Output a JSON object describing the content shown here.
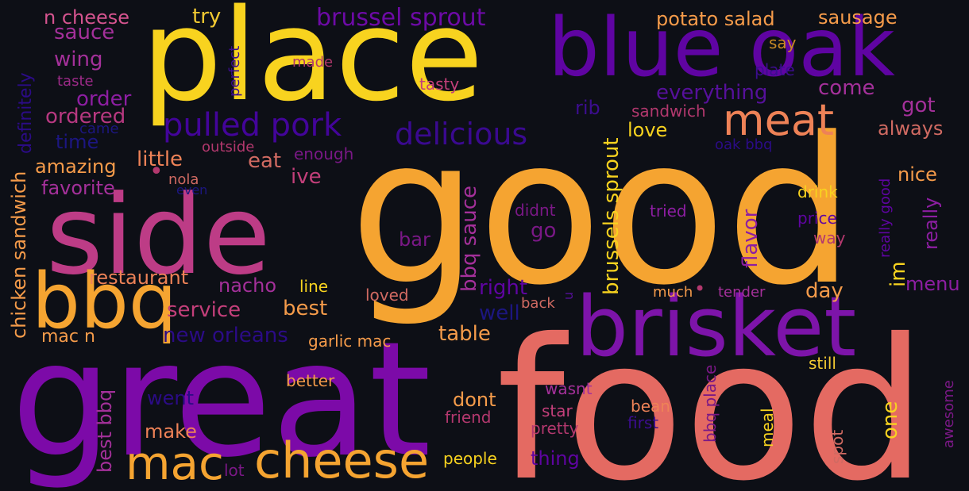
{
  "words": [
    {
      "text": "good",
      "color": "#f5a431"
    },
    {
      "text": "food",
      "color": "#e46a62"
    },
    {
      "text": "great",
      "color": "#7c0aa8"
    },
    {
      "text": "place",
      "color": "#f8d31f"
    },
    {
      "text": "side",
      "color": "#bd3c86"
    },
    {
      "text": "blue oak",
      "color": "#5f04a2"
    },
    {
      "text": "brisket",
      "color": "#7d14a9"
    },
    {
      "text": "bbq",
      "color": "#f5a431"
    },
    {
      "text": "cheese",
      "color": "#f5a431"
    },
    {
      "text": "mac",
      "color": "#f5a431"
    },
    {
      "text": "meat",
      "color": "#ee8257"
    },
    {
      "text": "pulled pork",
      "color": "#43049a"
    },
    {
      "text": "delicious",
      "color": "#3a0990"
    },
    {
      "text": "brussel sprout",
      "color": "#6d0aa6"
    },
    {
      "text": "potato salad",
      "color": "#f59b4a"
    },
    {
      "text": "sausage",
      "color": "#f59b4a"
    },
    {
      "text": "n cheese",
      "color": "#d5548f"
    },
    {
      "text": "try",
      "color": "#f1c932"
    },
    {
      "text": "sauce",
      "color": "#a4309a"
    },
    {
      "text": "wing",
      "color": "#a4309a"
    },
    {
      "text": "order",
      "color": "#8d1ea2"
    },
    {
      "text": "ordered",
      "color": "#b73880"
    },
    {
      "text": "time",
      "color": "#1c1680"
    },
    {
      "text": "came",
      "color": "#1c1680"
    },
    {
      "text": "taste",
      "color": "#9c2a88"
    },
    {
      "text": "made",
      "color": "#b1386c"
    },
    {
      "text": "tasty",
      "color": "#c33f7a"
    },
    {
      "text": "say",
      "color": "#c98a24"
    },
    {
      "text": "plate",
      "color": "#3c0d8f"
    },
    {
      "text": "everything",
      "color": "#56109b"
    },
    {
      "text": "come",
      "color": "#a4309a"
    },
    {
      "text": "sandwich",
      "color": "#b3386e"
    },
    {
      "text": "got",
      "color": "#a4309a"
    },
    {
      "text": "always",
      "color": "#d06a62"
    },
    {
      "text": "rib",
      "color": "#3c0d8f"
    },
    {
      "text": "love",
      "color": "#f8d31f"
    },
    {
      "text": "oak bbq",
      "color": "#2b0b86"
    },
    {
      "text": "nice",
      "color": "#f59b4a"
    },
    {
      "text": "really",
      "color": "#8d1ea2"
    },
    {
      "text": "definitely",
      "color": "#2b0b86"
    },
    {
      "text": "perfect",
      "color": "#3c0d8f"
    },
    {
      "text": "outside",
      "color": "#b3386e"
    },
    {
      "text": "enough",
      "color": "#7a1886"
    },
    {
      "text": "amazing",
      "color": "#f59b4a"
    },
    {
      "text": "little",
      "color": "#ee8257"
    },
    {
      "text": "eat",
      "color": "#d06a62"
    },
    {
      "text": "favorite",
      "color": "#a4309a"
    },
    {
      "text": "nola",
      "color": "#d06a62"
    },
    {
      "text": "even",
      "color": "#1c1680"
    },
    {
      "text": "ive",
      "color": "#c33f7a"
    },
    {
      "text": "chicken sandwich",
      "color": "#f59b4a"
    },
    {
      "text": "restaurant",
      "color": "#ee8257"
    },
    {
      "text": "nacho",
      "color": "#a4309a"
    },
    {
      "text": "line",
      "color": "#f8d31f"
    },
    {
      "text": "loved",
      "color": "#d06a62"
    },
    {
      "text": "service",
      "color": "#c33f7a"
    },
    {
      "text": "best",
      "color": "#f59b4a"
    },
    {
      "text": "mac n",
      "color": "#f59b4a"
    },
    {
      "text": "new orleans",
      "color": "#2b0b86"
    },
    {
      "text": "garlic mac",
      "color": "#f59b4a"
    },
    {
      "text": "bbq sauce",
      "color": "#a4309a"
    },
    {
      "text": "bar",
      "color": "#7a1886"
    },
    {
      "text": "right",
      "color": "#5f04a2"
    },
    {
      "text": "well",
      "color": "#1c1680"
    },
    {
      "text": "table",
      "color": "#f59b4a"
    },
    {
      "text": "didnt",
      "color": "#7a1886"
    },
    {
      "text": "go",
      "color": "#7a1886"
    },
    {
      "text": "brussels sprout",
      "color": "#f8d31f"
    },
    {
      "text": "tried",
      "color": "#8d1ea2"
    },
    {
      "text": "flavor",
      "color": "#8d1ea2"
    },
    {
      "text": "drink",
      "color": "#f8d31f"
    },
    {
      "text": "price",
      "color": "#5f04a2"
    },
    {
      "text": "way",
      "color": "#b3386e"
    },
    {
      "text": "really good",
      "color": "#5f04a2"
    },
    {
      "text": "im",
      "color": "#f8d31f"
    },
    {
      "text": "menu",
      "color": "#8d1ea2"
    },
    {
      "text": "day",
      "color": "#f59b4a"
    },
    {
      "text": "much",
      "color": "#f59b4a"
    },
    {
      "text": "tender",
      "color": "#a4309a"
    },
    {
      "text": "back",
      "color": "#d06a62"
    },
    {
      "text": "u",
      "color": "#56109b"
    },
    {
      "text": "still",
      "color": "#f1c932"
    },
    {
      "text": "went",
      "color": "#2b0b86"
    },
    {
      "text": "best bbq",
      "color": "#a4309a"
    },
    {
      "text": "better",
      "color": "#f59b4a"
    },
    {
      "text": "make",
      "color": "#ee8257"
    },
    {
      "text": "dont",
      "color": "#f59b4a"
    },
    {
      "text": "friend",
      "color": "#b3386e"
    },
    {
      "text": "wasnt",
      "color": "#a4309a"
    },
    {
      "text": "star",
      "color": "#c33f7a"
    },
    {
      "text": "pretty",
      "color": "#b3386e"
    },
    {
      "text": "bean",
      "color": "#ee8257"
    },
    {
      "text": "first",
      "color": "#3c0d8f"
    },
    {
      "text": "bbq place",
      "color": "#7a1886"
    },
    {
      "text": "meal",
      "color": "#f8d31f"
    },
    {
      "text": "spot",
      "color": "#d06a62"
    },
    {
      "text": "one",
      "color": "#f8d31f"
    },
    {
      "text": "awesome",
      "color": "#7a1886"
    },
    {
      "text": "thing",
      "color": "#5f04a2"
    },
    {
      "text": "people",
      "color": "#f8d31f"
    },
    {
      "text": "lot",
      "color": "#7a1886"
    },
    {
      "text": "•",
      "color": "#b3386e"
    },
    {
      "text": "•",
      "color": "#b3386e"
    }
  ]
}
